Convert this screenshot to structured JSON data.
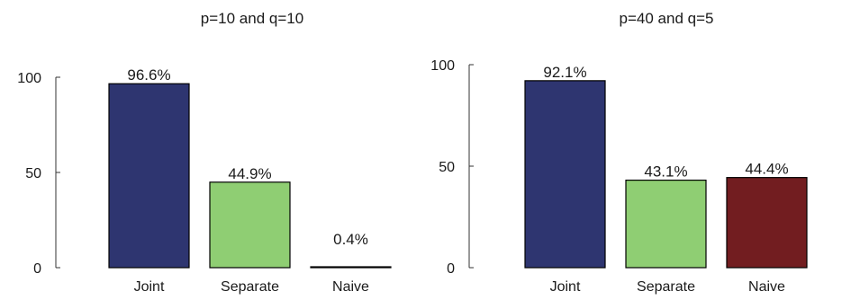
{
  "chart_data": [
    {
      "type": "bar",
      "title": "p=10 and q=10",
      "categories": [
        "Joint",
        "Separate",
        "Naive"
      ],
      "values": [
        96.6,
        44.9,
        0.4
      ],
      "data_labels": [
        "96.6%",
        "44.9%",
        "0.4%"
      ],
      "colors": [
        "#2e3570",
        "#8fce73",
        "#721d20"
      ],
      "yticks": [
        "0",
        "50",
        "100"
      ],
      "ylim": [
        0,
        100
      ],
      "xlabel": "",
      "ylabel": "",
      "grid": false
    },
    {
      "type": "bar",
      "title": "p=40 and q=5",
      "categories": [
        "Joint",
        "Separate",
        "Naive"
      ],
      "values": [
        92.1,
        43.1,
        44.4
      ],
      "data_labels": [
        "92.1%",
        "43.1%",
        "44.4%"
      ],
      "colors": [
        "#2e3570",
        "#8fce73",
        "#721d20"
      ],
      "yticks": [
        "0",
        "50",
        "100"
      ],
      "ylim": [
        0,
        100
      ],
      "xlabel": "",
      "ylabel": "",
      "grid": false
    }
  ]
}
